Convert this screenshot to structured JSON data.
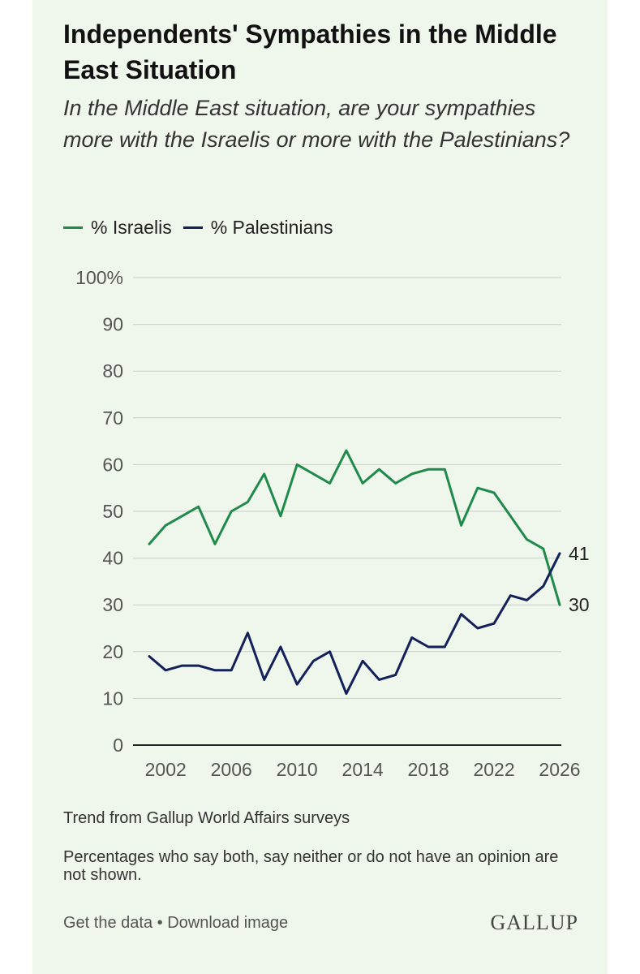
{
  "header": {
    "title": "Independents' Sympathies in the Middle East Situation",
    "subtitle": "In the Middle East situation, are your sympathies more with the Israelis or more with the Palestinians?"
  },
  "legend": {
    "israelis": "% Israelis",
    "palestinians": "% Palestinians"
  },
  "chart_data": {
    "type": "line",
    "title": "Independents' Sympathies in the Middle East Situation",
    "xlabel": "",
    "ylabel": "",
    "xlim": [
      2001,
      2026
    ],
    "ylim": [
      0,
      100
    ],
    "x_ticks": [
      "2002",
      "2006",
      "2010",
      "2014",
      "2018",
      "2022",
      "2026"
    ],
    "y_ticks": [
      "0",
      "10",
      "20",
      "30",
      "40",
      "50",
      "60",
      "70",
      "80",
      "90",
      "100%"
    ],
    "x": [
      2001,
      2002,
      2003,
      2004,
      2005,
      2006,
      2007,
      2008,
      2009,
      2010,
      2011,
      2012,
      2013,
      2014,
      2015,
      2016,
      2017,
      2018,
      2019,
      2020,
      2021,
      2022,
      2023,
      2024,
      2025,
      2026
    ],
    "series": [
      {
        "name": "% Israelis",
        "color": "#1f8a4c",
        "values": [
          43,
          47,
          49,
          51,
          43,
          50,
          52,
          58,
          49,
          60,
          58,
          56,
          63,
          56,
          59,
          56,
          58,
          59,
          59,
          47,
          55,
          54,
          49,
          44,
          42,
          30
        ],
        "end_label": "30"
      },
      {
        "name": "% Palestinians",
        "color": "#13215a",
        "values": [
          19,
          16,
          17,
          17,
          16,
          16,
          24,
          14,
          21,
          13,
          18,
          20,
          11,
          18,
          14,
          15,
          23,
          21,
          21,
          28,
          25,
          26,
          32,
          31,
          34,
          41
        ],
        "end_label": "41"
      }
    ],
    "grid": true,
    "legend_position": "top-left"
  },
  "notes": {
    "source": "Trend from Gallup World Affairs surveys",
    "footnote": "Percentages who say both, say neither or do not have an opinion are not shown."
  },
  "footer": {
    "get_data": "Get the data",
    "separator": " • ",
    "download": "Download image",
    "logo": "GALLUP"
  }
}
